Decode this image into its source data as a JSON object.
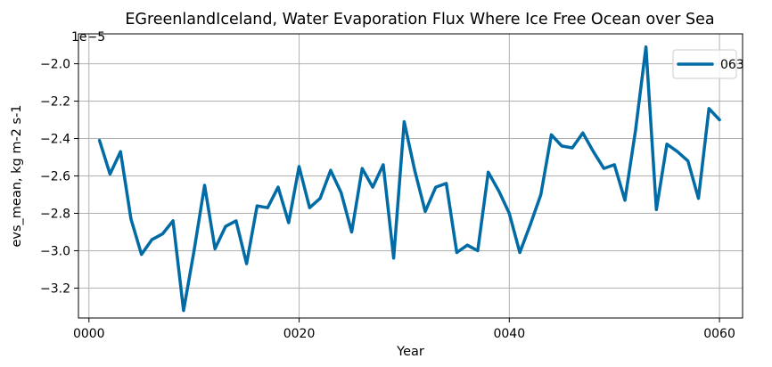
{
  "chart_data": {
    "type": "line",
    "title": "EGreenlandIceland, Water Evaporation Flux Where Ice Free Ocean over Sea",
    "xlabel": "Year",
    "ylabel": "evs_mean, kg m-2 s-1",
    "y_offset_label": "1e−5",
    "xlim": [
      -1.0,
      62.2
    ],
    "ylim": [
      -3.36,
      -1.84
    ],
    "x_ticks": [
      0,
      20,
      40,
      60
    ],
    "x_tick_labels": [
      "0000",
      "0020",
      "0040",
      "0060"
    ],
    "y_ticks": [
      -3.2,
      -3.0,
      -2.8,
      -2.6,
      -2.4,
      -2.2,
      -2.0
    ],
    "y_tick_labels": [
      "−3.2",
      "−3.0",
      "−2.8",
      "−2.6",
      "−2.4",
      "−2.2",
      "−2.0"
    ],
    "grid": true,
    "legend_position": "top-right",
    "series": [
      {
        "name": "063",
        "color": "#006ba4",
        "x": [
          1,
          2,
          3,
          4,
          5,
          6,
          7,
          8,
          9,
          10,
          11,
          12,
          13,
          14,
          15,
          16,
          17,
          18,
          19,
          20,
          21,
          22,
          23,
          24,
          25,
          26,
          27,
          28,
          29,
          30,
          31,
          32,
          33,
          34,
          35,
          36,
          37,
          38,
          39,
          40,
          41,
          42,
          43,
          44,
          45,
          46,
          47,
          48,
          49,
          50,
          51,
          52,
          53,
          54,
          55,
          56,
          57,
          58,
          59,
          60
        ],
        "values": [
          -2.41,
          -2.59,
          -2.47,
          -2.83,
          -3.02,
          -2.94,
          -2.91,
          -2.84,
          -3.32,
          -3.0,
          -2.65,
          -2.99,
          -2.87,
          -2.84,
          -3.07,
          -2.76,
          -2.77,
          -2.66,
          -2.85,
          -2.55,
          -2.77,
          -2.72,
          -2.57,
          -2.69,
          -2.9,
          -2.56,
          -2.66,
          -2.54,
          -3.04,
          -2.31,
          -2.57,
          -2.79,
          -2.66,
          -2.64,
          -3.01,
          -2.97,
          -3.0,
          -2.58,
          -2.68,
          -2.8,
          -3.01,
          -2.86,
          -2.7,
          -2.38,
          -2.44,
          -2.45,
          -2.37,
          -2.47,
          -2.56,
          -2.54,
          -2.73,
          -2.36,
          -1.91,
          -2.78,
          -2.43,
          -2.47,
          -2.52,
          -2.72,
          -2.24,
          -2.3
        ]
      }
    ]
  }
}
